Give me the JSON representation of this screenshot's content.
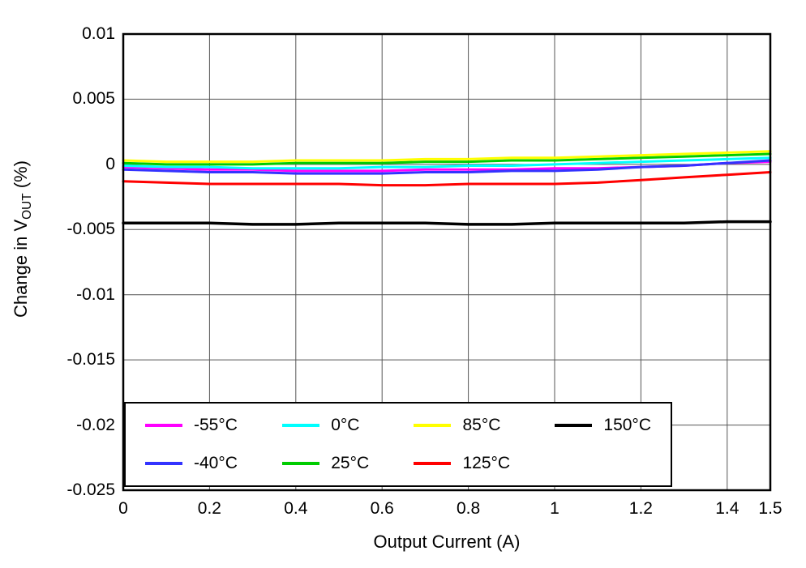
{
  "chart_data": {
    "type": "line",
    "title": "",
    "xlabel": "Output Current (A)",
    "ylabel": {
      "prefix": "Change in V",
      "sub": "OUT",
      "suffix": " (%)"
    },
    "xlim": [
      0,
      1.5
    ],
    "ylim": [
      -0.025,
      0.01
    ],
    "grid": true,
    "legend_position": "bottom-left",
    "x_ticks": [
      {
        "v": 0,
        "label": "0"
      },
      {
        "v": 0.2,
        "label": "0.2"
      },
      {
        "v": 0.4,
        "label": "0.4"
      },
      {
        "v": 0.6,
        "label": "0.6"
      },
      {
        "v": 0.8,
        "label": "0.8"
      },
      {
        "v": 1,
        "label": "1"
      },
      {
        "v": 1.2,
        "label": "1.2"
      },
      {
        "v": 1.4,
        "label": "1.4"
      },
      {
        "v": 1.5,
        "label": "1.5"
      }
    ],
    "y_ticks": [
      {
        "v": 0.01,
        "label": "0.01"
      },
      {
        "v": 0.005,
        "label": "0.005"
      },
      {
        "v": 0,
        "label": "0"
      },
      {
        "v": -0.005,
        "label": "-0.005"
      },
      {
        "v": -0.01,
        "label": "-0.01"
      },
      {
        "v": -0.015,
        "label": "-0.015"
      },
      {
        "v": -0.02,
        "label": "-0.02"
      },
      {
        "v": -0.025,
        "label": "-0.025"
      }
    ],
    "x": [
      0,
      0.1,
      0.2,
      0.3,
      0.4,
      0.5,
      0.6,
      0.7,
      0.8,
      0.9,
      1.0,
      1.1,
      1.2,
      1.3,
      1.4,
      1.5
    ],
    "series": [
      {
        "name": "-55°C",
        "color": "#FF00FF",
        "width": 3,
        "values": [
          -0.0002,
          -0.0003,
          -0.0004,
          -0.0004,
          -0.0005,
          -0.0005,
          -0.0005,
          -0.0004,
          -0.0004,
          -0.0004,
          -0.0003,
          -0.0003,
          -0.0002,
          -0.0001,
          0.0001,
          0.0002
        ]
      },
      {
        "name": "-40°C",
        "color": "#3333FF",
        "width": 3,
        "values": [
          -0.0004,
          -0.0005,
          -0.0006,
          -0.0006,
          -0.0007,
          -0.0007,
          -0.0007,
          -0.0006,
          -0.0006,
          -0.0005,
          -0.0005,
          -0.0004,
          -0.0002,
          -0.0001,
          0.0001,
          0.0003
        ]
      },
      {
        "name": "0°C",
        "color": "#00FFFF",
        "width": 3,
        "values": [
          -0.0001,
          -0.0002,
          -0.0002,
          -0.0003,
          -0.0003,
          -0.0003,
          -0.0002,
          -0.0002,
          -0.0001,
          -0.0001,
          0.0,
          0.0001,
          0.0002,
          0.0003,
          0.0004,
          0.0005
        ]
      },
      {
        "name": "25°C",
        "color": "#00CC00",
        "width": 3,
        "values": [
          0.0001,
          0.0,
          0.0,
          0.0,
          0.0001,
          0.0001,
          0.0001,
          0.0002,
          0.0002,
          0.0003,
          0.0003,
          0.0004,
          0.0005,
          0.0006,
          0.0007,
          0.0008
        ]
      },
      {
        "name": "85°C",
        "color": "#FFFF00",
        "width": 3,
        "values": [
          0.0003,
          0.0002,
          0.0002,
          0.0002,
          0.0003,
          0.0003,
          0.0003,
          0.0004,
          0.0004,
          0.0005,
          0.0005,
          0.0006,
          0.0007,
          0.0008,
          0.0009,
          0.001
        ]
      },
      {
        "name": "125°C",
        "color": "#FF0000",
        "width": 3,
        "values": [
          -0.0013,
          -0.0014,
          -0.0015,
          -0.0015,
          -0.0015,
          -0.0015,
          -0.0016,
          -0.0016,
          -0.0015,
          -0.0015,
          -0.0015,
          -0.0014,
          -0.0012,
          -0.001,
          -0.0008,
          -0.0006
        ]
      },
      {
        "name": "150°C",
        "color": "#000000",
        "width": 3.5,
        "values": [
          -0.0045,
          -0.0045,
          -0.0045,
          -0.0046,
          -0.0046,
          -0.0045,
          -0.0045,
          -0.0045,
          -0.0046,
          -0.0046,
          -0.0045,
          -0.0045,
          -0.0045,
          -0.0045,
          -0.0044,
          -0.0044
        ]
      }
    ]
  }
}
